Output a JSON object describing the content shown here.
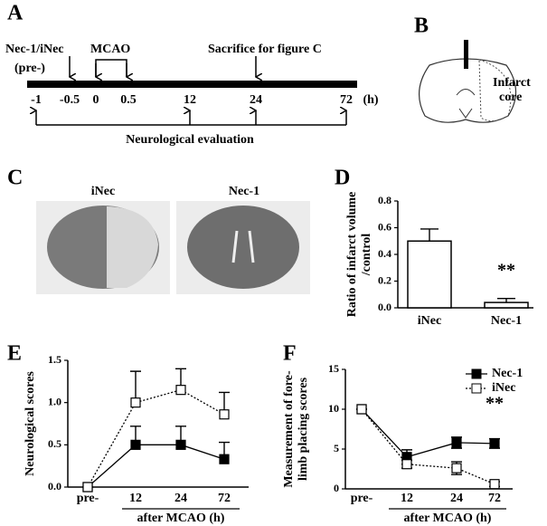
{
  "panel_a": {
    "label": "A",
    "drug": "Nec-1/iNec",
    "pre": "(pre-)",
    "mcao": "MCAO",
    "sacrifice": "Sacrifice for figure C",
    "timepoints": [
      "-1",
      "-0.5",
      "0",
      "0.5",
      "12",
      "24",
      "72"
    ],
    "unit": "(h)",
    "evaluation": "Neurological evaluation"
  },
  "panel_b": {
    "label": "B",
    "infarct": "Infarct",
    "core": "core"
  },
  "panel_c": {
    "label": "C",
    "images": [
      "iNec",
      "Nec-1"
    ]
  },
  "chart_data": [
    {
      "type": "bar",
      "label": "D",
      "ylabel": [
        "Ratio of infarct volume",
        "/control"
      ],
      "categories": [
        "iNec",
        "Nec-1"
      ],
      "values": [
        0.5,
        0.04
      ],
      "errors": [
        0.09,
        0.03
      ],
      "error_bars": "upper",
      "color": "#ffffff",
      "ylim": [
        0,
        0.8
      ],
      "yticks": [
        {
          "value": 0,
          "label": "0.0"
        },
        {
          "value": 0.2,
          "label": "0.2"
        },
        {
          "value": 0.4,
          "label": "0.4"
        },
        {
          "value": 0.6,
          "label": "0.6"
        },
        {
          "value": 0.8,
          "label": "0.8"
        }
      ],
      "annotation": "**"
    },
    {
      "type": "line",
      "label": "E",
      "ylabel": [
        "Neurological scores"
      ],
      "xlabel": "after MCAO (h)",
      "categories": [
        "pre-",
        "12",
        "24",
        "72"
      ],
      "error_bars": "upper",
      "series": [
        {
          "name": "Nec-1",
          "color": "#000000",
          "fill": "#000000",
          "line_style": "solid",
          "values": [
            0,
            0.5,
            0.5,
            0.33
          ],
          "errors": [
            0,
            0.22,
            0.22,
            0.2
          ]
        },
        {
          "name": "iNec",
          "color": "#000000",
          "fill": "#ffffff",
          "line_style": "dotted",
          "values": [
            0,
            1.0,
            1.15,
            0.86
          ],
          "errors": [
            0,
            0.37,
            0.25,
            0.26
          ]
        }
      ],
      "ylim": [
        0,
        1.5
      ],
      "yticks": [
        {
          "value": 0,
          "label": "0.0"
        },
        {
          "value": 0.5,
          "label": "0.5"
        },
        {
          "value": 1,
          "label": "1.0"
        },
        {
          "value": 1.5,
          "label": "1.5"
        }
      ]
    },
    {
      "type": "line",
      "label": "F",
      "ylabel": [
        "Measurement of fore-",
        "limb placing scores"
      ],
      "xlabel": "after MCAO (h)",
      "categories": [
        "pre-",
        "12",
        "24",
        "72"
      ],
      "error_bars": "both",
      "legend": "top-right",
      "series": [
        {
          "name": "Nec-1",
          "color": "#000000",
          "fill": "#000000",
          "line_style": "solid",
          "values": [
            10,
            4,
            5.8,
            5.7
          ],
          "errors": [
            0,
            0.9,
            0.7,
            0.6
          ]
        },
        {
          "name": "iNec",
          "color": "#000000",
          "fill": "#ffffff",
          "line_style": "dotted",
          "values": [
            10,
            3.1,
            2.6,
            0.6
          ],
          "errors": [
            0,
            0.5,
            0.8,
            0.3
          ]
        }
      ],
      "ylim": [
        0,
        15
      ],
      "yticks": [
        0,
        5,
        10,
        15
      ],
      "annotation": "**"
    }
  ]
}
